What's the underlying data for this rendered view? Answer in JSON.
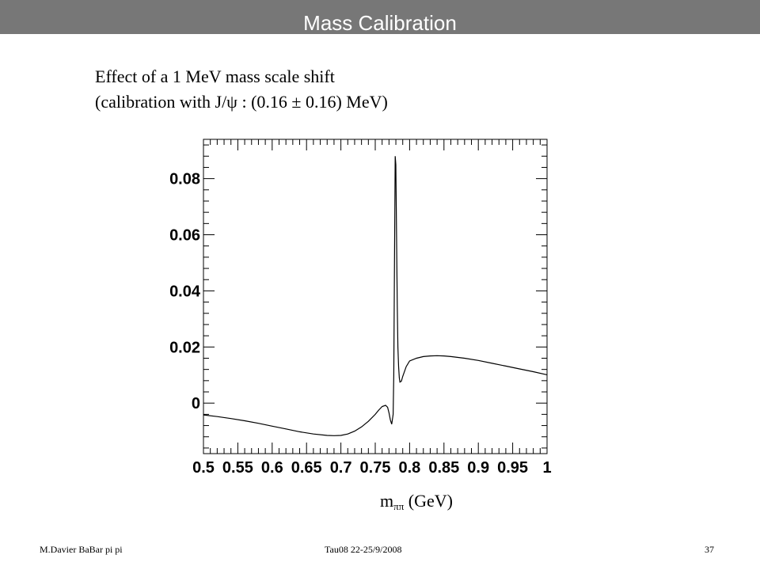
{
  "slide": {
    "title": "Mass Calibration",
    "heading_line1": "Effect of a 1 MeV mass scale shift",
    "heading_line2": "(calibration with J/ψ : (0.16 ± 0.16) MeV)"
  },
  "footer": {
    "left": "M.Davier    BaBar pi pi",
    "center": "Tau08  22-25/9/2008",
    "page": "37"
  },
  "chart_data": {
    "type": "line",
    "title": "",
    "xlabel_main": "m",
    "xlabel_sub": "ππ",
    "xlabel_unit": "(GeV)",
    "ylabel": "",
    "xlim": [
      0.5,
      1.0
    ],
    "ylim": [
      -0.018,
      0.094
    ],
    "grid": false,
    "x_tick_labels": [
      "0.5",
      "0.55",
      "0.6",
      "0.65",
      "0.7",
      "0.75",
      "0.8",
      "0.85",
      "0.9",
      "0.95",
      "1"
    ],
    "y_tick_labels": [
      "0",
      "0.02",
      "0.04",
      "0.06",
      "0.08"
    ],
    "series": [
      {
        "color": "#000000",
        "x": [
          0.5,
          0.52,
          0.54,
          0.56,
          0.58,
          0.6,
          0.62,
          0.64,
          0.66,
          0.68,
          0.69,
          0.7,
          0.71,
          0.72,
          0.73,
          0.74,
          0.75,
          0.755,
          0.76,
          0.765,
          0.768,
          0.77,
          0.772,
          0.774,
          0.776,
          0.777,
          0.778,
          0.779,
          0.78,
          0.781,
          0.782,
          0.783,
          0.784,
          0.785,
          0.786,
          0.788,
          0.79,
          0.795,
          0.8,
          0.81,
          0.82,
          0.83,
          0.84,
          0.85,
          0.86,
          0.88,
          0.9,
          0.92,
          0.94,
          0.96,
          0.98,
          1.0
        ],
        "y": [
          -0.0042,
          -0.0048,
          -0.0055,
          -0.0063,
          -0.0072,
          -0.0082,
          -0.0092,
          -0.0102,
          -0.011,
          -0.0115,
          -0.0116,
          -0.0115,
          -0.011,
          -0.01,
          -0.0085,
          -0.0065,
          -0.004,
          -0.0025,
          -0.0012,
          -0.0008,
          -0.0015,
          -0.0035,
          -0.006,
          -0.0075,
          -0.004,
          0.01,
          0.05,
          0.088,
          0.085,
          0.06,
          0.035,
          0.02,
          0.013,
          0.009,
          0.0075,
          0.0078,
          0.0095,
          0.013,
          0.015,
          0.016,
          0.0166,
          0.0168,
          0.0169,
          0.0168,
          0.0166,
          0.016,
          0.0152,
          0.0142,
          0.0132,
          0.0122,
          0.0112,
          0.0101
        ]
      }
    ]
  }
}
